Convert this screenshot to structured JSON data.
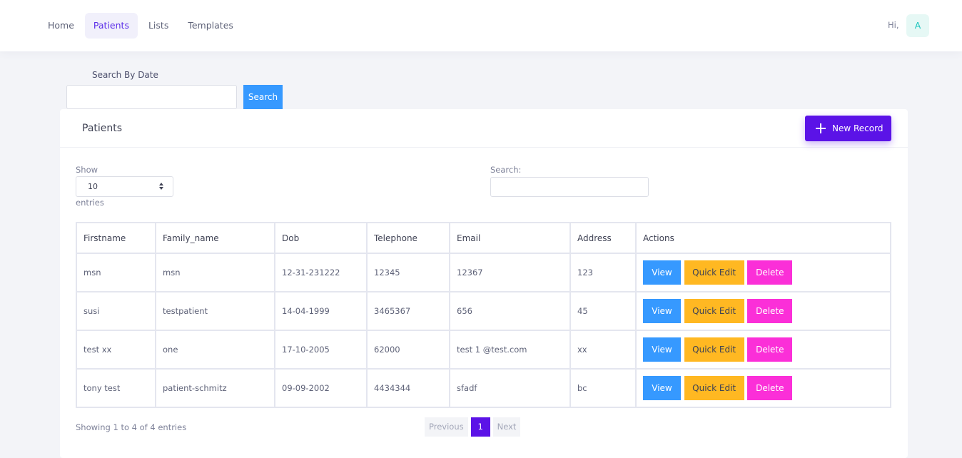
{
  "nav": {
    "items": [
      {
        "label": "Home",
        "active": false
      },
      {
        "label": "Patients",
        "active": true
      },
      {
        "label": "Lists",
        "active": false
      },
      {
        "label": "Templates",
        "active": false
      }
    ],
    "greeting": "Hi,",
    "avatar_letter": "A"
  },
  "date_search": {
    "label": "Search By Date",
    "input_value": "",
    "button_label": "Search"
  },
  "card": {
    "title": "Patients",
    "new_record_label": "New Record"
  },
  "table_controls": {
    "show_label": "Show",
    "page_length": "10",
    "entries_label": "entries",
    "search_label": "Search:",
    "search_value": ""
  },
  "table": {
    "headers": [
      "Firstname",
      "Family_name",
      "Dob",
      "Telephone",
      "Email",
      "Address",
      "Actions"
    ],
    "rows": [
      [
        "msn",
        "msn",
        "12-31-231222",
        "12345",
        "12367",
        "123"
      ],
      [
        "susi",
        "testpatient",
        "14-04-1999",
        "3465367",
        "656",
        "45"
      ],
      [
        "test xx",
        "one",
        "17-10-2005",
        "62000",
        "test 1 @test.com",
        "xx"
      ],
      [
        "tony test",
        "patient-schmitz",
        "09-09-2002",
        "4434344",
        "sfadf",
        "bc"
      ]
    ],
    "actions": {
      "view": "View",
      "quick_edit": "Quick Edit",
      "delete": "Delete"
    }
  },
  "footer": {
    "info": "Showing 1 to 4 of 4 entries",
    "previous": "Previous",
    "current_page": "1",
    "next": "Next"
  },
  "colors": {
    "primary": "#5b13e7",
    "info": "#3699ff",
    "warning": "#ffb822",
    "danger": "#fb2fd8"
  }
}
